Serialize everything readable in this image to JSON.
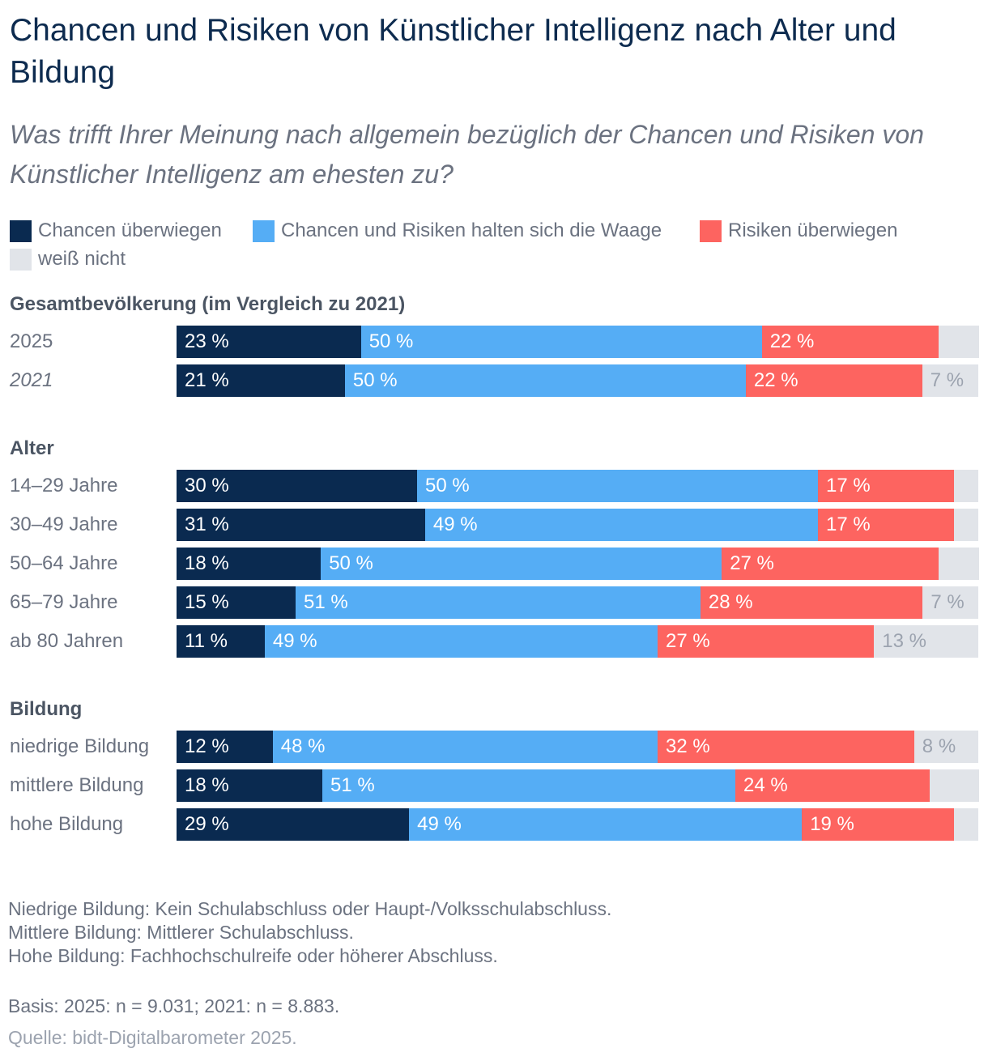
{
  "title": "Chancen und Risiken von Künstlicher Intelligenz nach Alter und Bildung",
  "subtitle": "Was trifft Ihrer Meinung nach allgemein bezüglich der Chancen und Risiken von Künstlicher Intelligenz am ehesten zu?",
  "legend": [
    {
      "label": "Chancen überwiegen",
      "color": "#0a2a50"
    },
    {
      "label": "Chancen und Risiken halten sich die Waage",
      "color": "#55adf5"
    },
    {
      "label": "Risiken überwiegen",
      "color": "#fd6460"
    },
    {
      "label": "weiß nicht",
      "color": "#e1e4e9"
    }
  ],
  "chart_data": {
    "type": "bar",
    "orientation": "horizontal",
    "stacked": true,
    "unit": "%",
    "title": "Chancen und Risiken von Künstlicher Intelligenz nach Alter und Bildung",
    "series": [
      {
        "name": "Chancen überwiegen",
        "color": "#0a2a50"
      },
      {
        "name": "Chancen und Risiken halten sich die Waage",
        "color": "#55adf5"
      },
      {
        "name": "Risiken überwiegen",
        "color": "#fd6460"
      },
      {
        "name": "weiß nicht",
        "color": "#e1e4e9"
      }
    ],
    "groups": [
      {
        "title": "Gesamtbevölkerung (im Vergleich zu 2021)",
        "rows": [
          {
            "label": "2025",
            "italic": false,
            "values": [
              23,
              50,
              22,
              5
            ],
            "labels": [
              "23 %",
              "50 %",
              "22 %",
              ""
            ]
          },
          {
            "label": "2021",
            "italic": true,
            "values": [
              21,
              50,
              22,
              7
            ],
            "labels": [
              "21 %",
              "50 %",
              "22 %",
              "7 %"
            ]
          }
        ]
      },
      {
        "title": "Alter",
        "rows": [
          {
            "label": "14–29 Jahre",
            "italic": false,
            "values": [
              30,
              50,
              17,
              3
            ],
            "labels": [
              "30 %",
              "50 %",
              "17 %",
              ""
            ]
          },
          {
            "label": "30–49 Jahre",
            "italic": false,
            "values": [
              31,
              49,
              17,
              3
            ],
            "labels": [
              "31 %",
              "49 %",
              "17 %",
              ""
            ]
          },
          {
            "label": "50–64 Jahre",
            "italic": false,
            "values": [
              18,
              50,
              27,
              5
            ],
            "labels": [
              "18 %",
              "50 %",
              "27 %",
              ""
            ]
          },
          {
            "label": "65–79 Jahre",
            "italic": false,
            "values": [
              15,
              51,
              28,
              7
            ],
            "labels": [
              "15 %",
              "51 %",
              "28 %",
              "7 %"
            ]
          },
          {
            "label": "ab 80 Jahren",
            "italic": false,
            "values": [
              11,
              49,
              27,
              13
            ],
            "labels": [
              "11 %",
              "49 %",
              "27 %",
              "13 %"
            ]
          }
        ]
      },
      {
        "title": "Bildung",
        "rows": [
          {
            "label": "niedrige Bildung",
            "italic": false,
            "values": [
              12,
              48,
              32,
              8
            ],
            "labels": [
              "12 %",
              "48 %",
              "32 %",
              "8 %"
            ]
          },
          {
            "label": "mittlere Bildung",
            "italic": false,
            "values": [
              18,
              51,
              24,
              6
            ],
            "labels": [
              "18 %",
              "51 %",
              "24 %",
              ""
            ]
          },
          {
            "label": "hohe Bildung",
            "italic": false,
            "values": [
              29,
              49,
              19,
              3
            ],
            "labels": [
              "29 %",
              "49 %",
              "19 %",
              ""
            ]
          }
        ]
      }
    ]
  },
  "footnotes": [
    "Niedrige Bildung: Kein Schulabschluss oder Haupt-/Volksschulabschluss.",
    "Mittlere Bildung: Mittlerer Schulabschluss.",
    "Hohe Bildung: Fachhochschulreife oder höherer Abschluss."
  ],
  "basis": "Basis: 2025: n = 9.031; 2021: n = 8.883.",
  "source": "Quelle: bidt-Digitalbarometer 2025."
}
